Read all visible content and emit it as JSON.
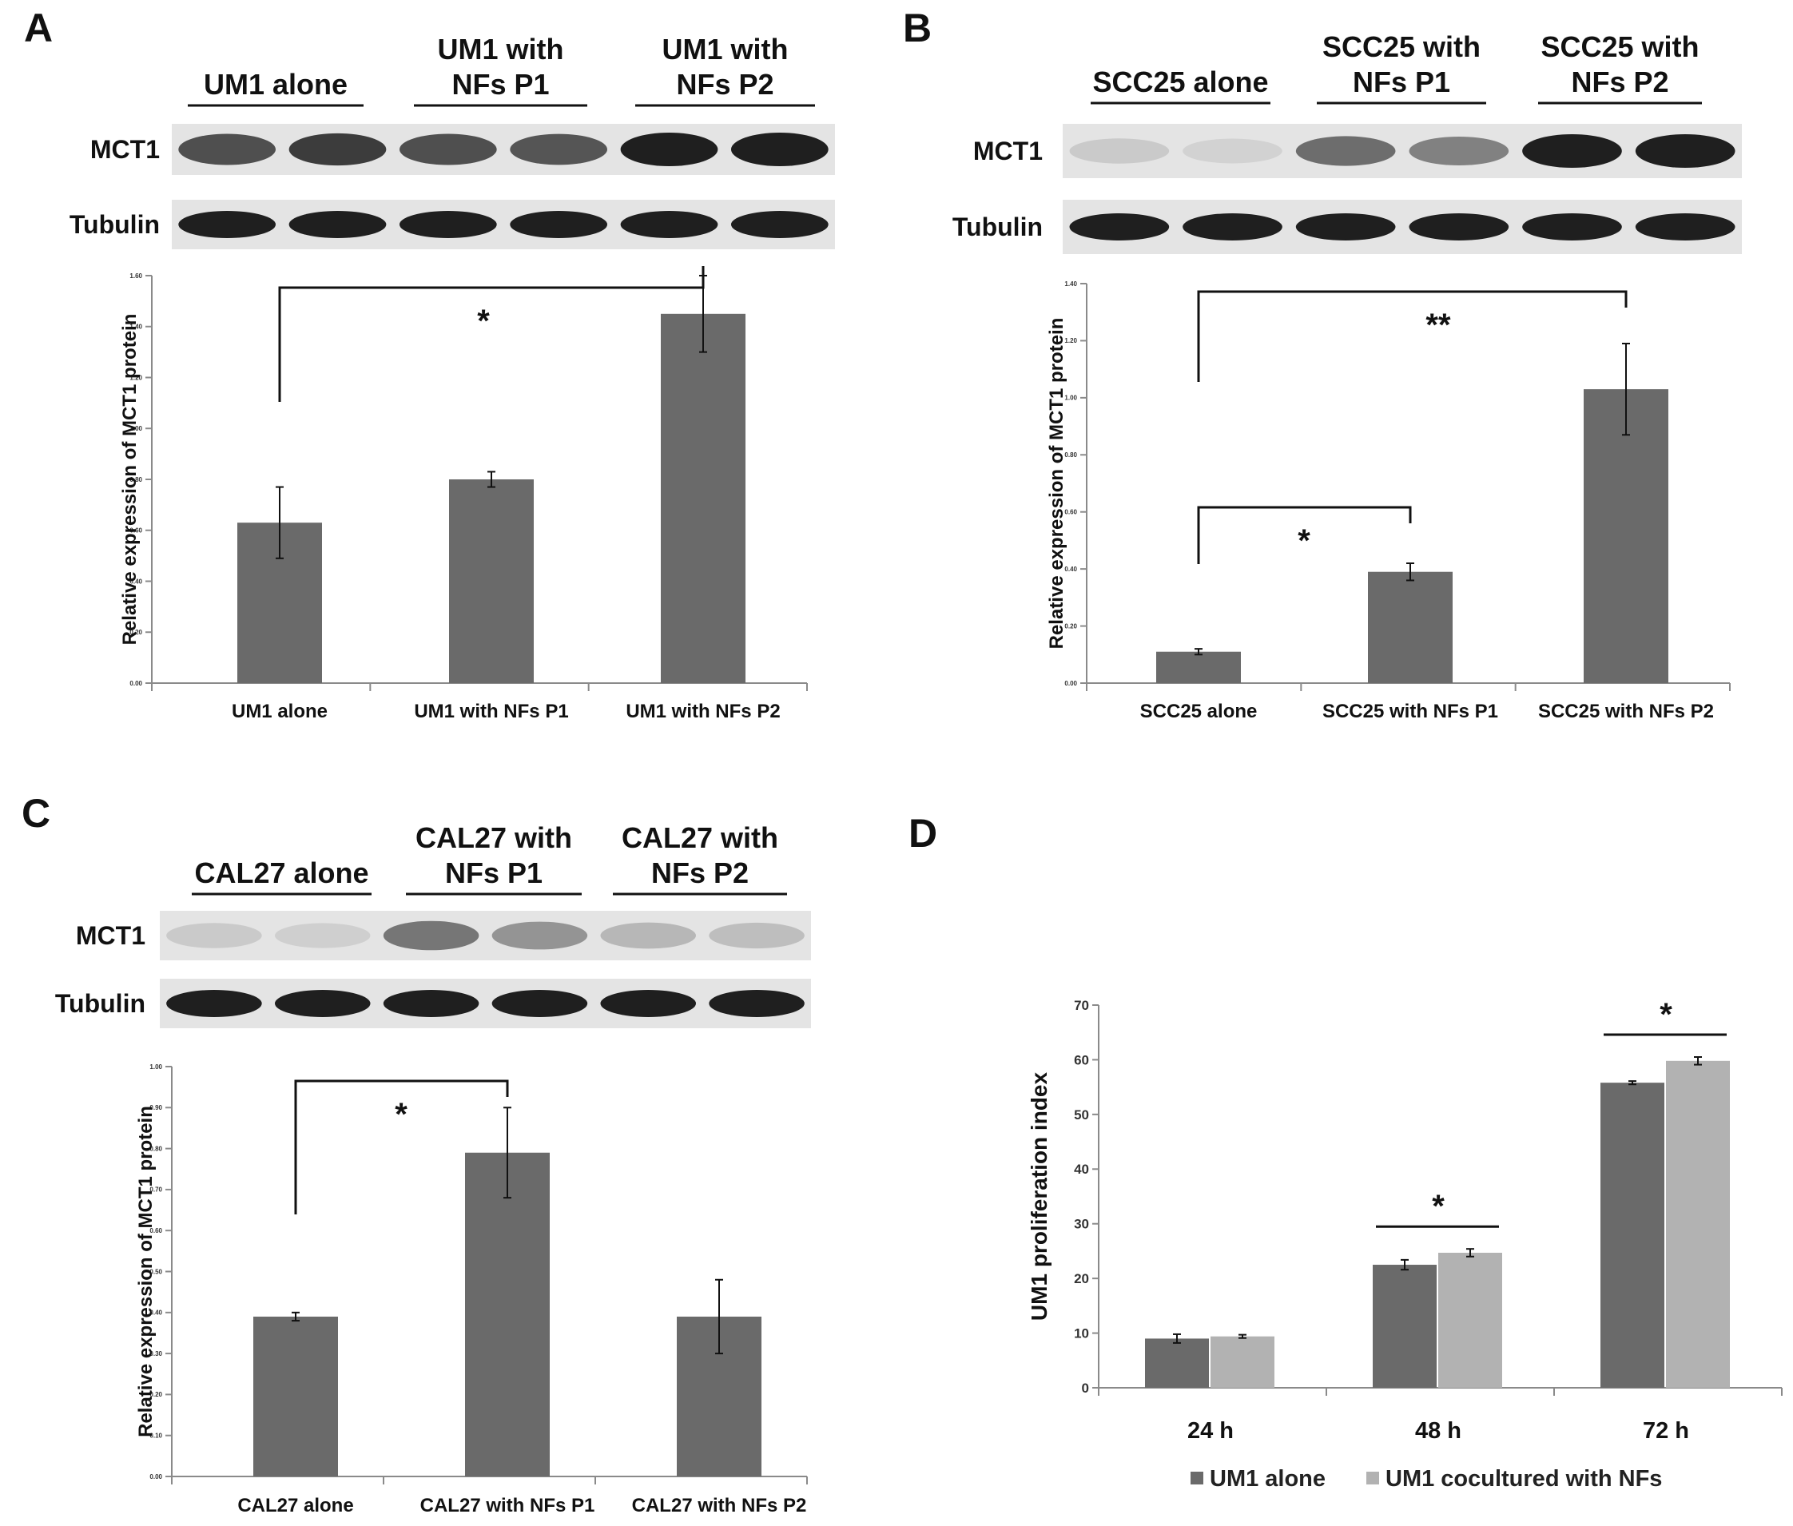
{
  "panels": {
    "A": {
      "letter": "A",
      "blot": {
        "groups": [
          "UM1 alone",
          "UM1 with\nNFs P1",
          "UM1 with\nNFs P2"
        ],
        "rows": [
          "MCT1",
          "Tubulin"
        ]
      }
    },
    "B": {
      "letter": "B",
      "blot": {
        "groups": [
          "SCC25 alone",
          "SCC25 with\nNFs P1",
          "SCC25 with\nNFs P2"
        ],
        "rows": [
          "MCT1",
          "Tubulin"
        ]
      }
    },
    "C": {
      "letter": "C",
      "blot": {
        "groups": [
          "CAL27 alone",
          "CAL27 with\nNFs P1",
          "CAL27 with\nNFs P2"
        ],
        "rows": [
          "MCT1",
          "Tubulin"
        ]
      }
    },
    "D": {
      "letter": "D"
    }
  },
  "colors": {
    "bar": "#6a6a6a",
    "bar_light": "#b2b2b2",
    "axis": "#8a8a8a",
    "text": "#111111"
  },
  "chart_data": [
    {
      "panel": "A",
      "type": "bar",
      "categories": [
        "UM1 alone",
        "UM1 with NFs P1",
        "UM1 with NFs P2"
      ],
      "values": [
        0.63,
        0.8,
        1.45
      ],
      "errors": [
        0.14,
        0.03,
        0.15
      ],
      "ylabel": "Relative expression of MCT1 protein",
      "ylim": [
        0,
        1.6
      ],
      "yticks": [
        "0.00",
        "0.20",
        "0.40",
        "0.60",
        "0.80",
        "1.00",
        "1.20",
        "1.40",
        "1.60"
      ],
      "significance": [
        {
          "from": 0,
          "to": 2,
          "label": "*"
        }
      ]
    },
    {
      "panel": "B",
      "type": "bar",
      "categories": [
        "SCC25 alone",
        "SCC25 with NFs P1",
        "SCC25 with NFs P2"
      ],
      "values": [
        0.11,
        0.39,
        1.03
      ],
      "errors": [
        0.01,
        0.03,
        0.16
      ],
      "ylabel": "Relative expression of MCT1 protein",
      "ylim": [
        0,
        1.4
      ],
      "yticks": [
        "0.00",
        "0.20",
        "0.40",
        "0.60",
        "0.80",
        "1.00",
        "1.20",
        "1.40"
      ],
      "significance": [
        {
          "from": 0,
          "to": 2,
          "label": "**"
        },
        {
          "from": 0,
          "to": 1,
          "label": "*"
        }
      ]
    },
    {
      "panel": "C",
      "type": "bar",
      "categories": [
        "CAL27 alone",
        "CAL27 with NFs P1",
        "CAL27 with NFs P2"
      ],
      "values": [
        0.39,
        0.79,
        0.39
      ],
      "errors": [
        0.01,
        0.11,
        0.09
      ],
      "ylabel": "Relative expression of MCT1 protein",
      "ylim": [
        0,
        1.0
      ],
      "yticks": [
        "0.00",
        "0.10",
        "0.20",
        "0.30",
        "0.40",
        "0.50",
        "0.60",
        "0.70",
        "0.80",
        "0.90",
        "1.00"
      ],
      "significance": [
        {
          "from": 0,
          "to": 1,
          "label": "*"
        }
      ]
    },
    {
      "panel": "D",
      "type": "bar",
      "categories": [
        "24 h",
        "48 h",
        "72 h"
      ],
      "series": [
        {
          "name": "UM1 alone",
          "values": [
            9.0,
            22.5,
            55.8
          ],
          "errors": [
            0.8,
            0.9,
            0.3
          ]
        },
        {
          "name": "UM1 cocultured with NFs",
          "values": [
            9.4,
            24.7,
            59.8
          ],
          "errors": [
            0.3,
            0.7,
            0.7
          ]
        }
      ],
      "ylabel": "UM1 proliferation index",
      "ylim": [
        0,
        70
      ],
      "yticks": [
        "0",
        "10",
        "20",
        "30",
        "40",
        "50",
        "60",
        "70"
      ],
      "legend_position": "bottom",
      "significance": [
        {
          "category": 1,
          "label": "*"
        },
        {
          "category": 2,
          "label": "*"
        }
      ]
    }
  ]
}
